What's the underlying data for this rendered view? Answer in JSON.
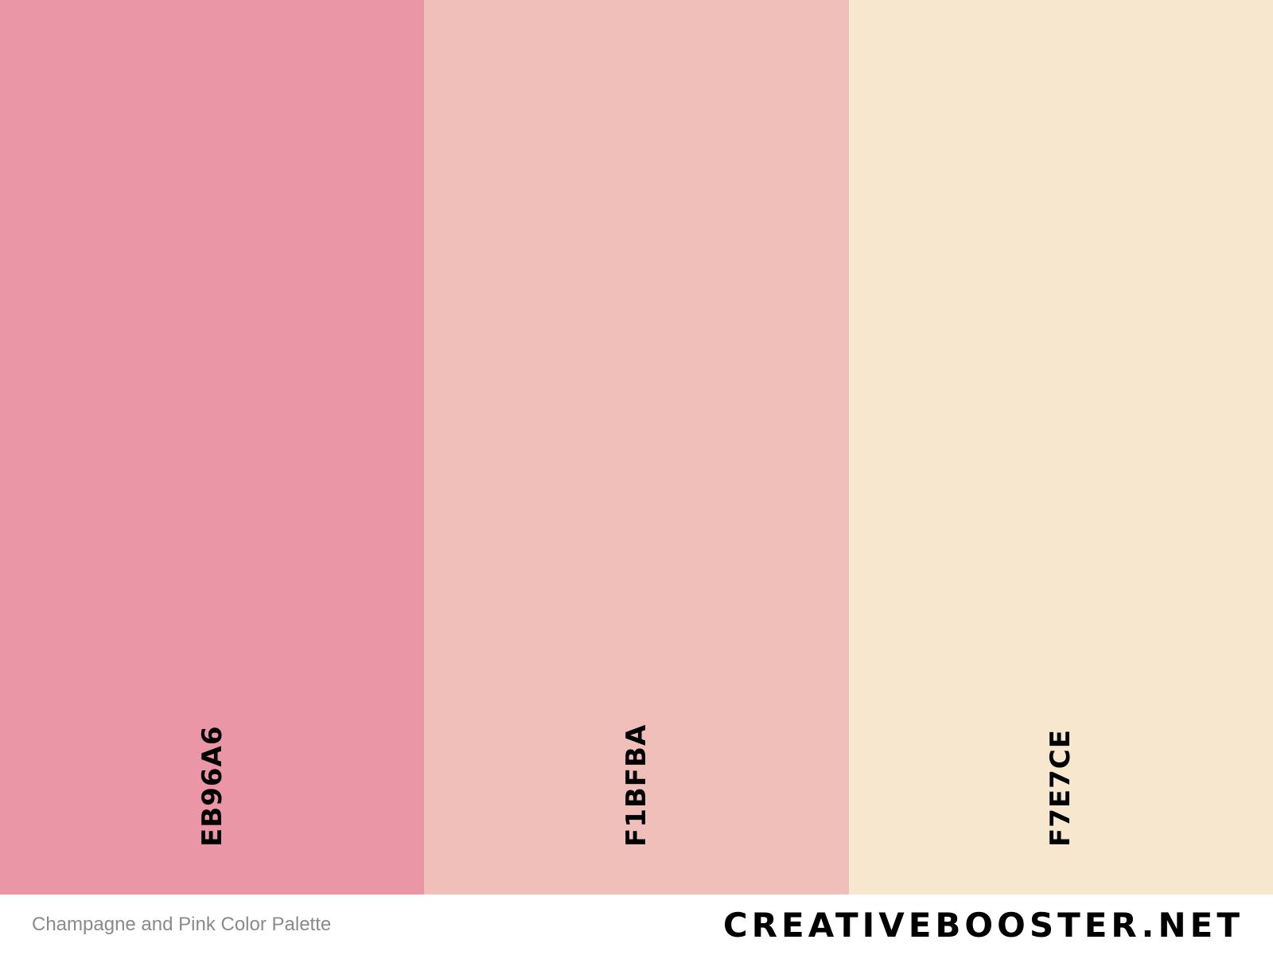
{
  "swatches": [
    {
      "hex": "EB96A6",
      "color": "#EB96A6"
    },
    {
      "hex": "F1BFBA",
      "color": "#F1BFBA"
    },
    {
      "hex": "F7E7CE",
      "color": "#F7E7CE"
    }
  ],
  "footer": {
    "caption": "Champagne and Pink Color Palette",
    "brand": "CREATIVEBOOSTER.NET"
  }
}
